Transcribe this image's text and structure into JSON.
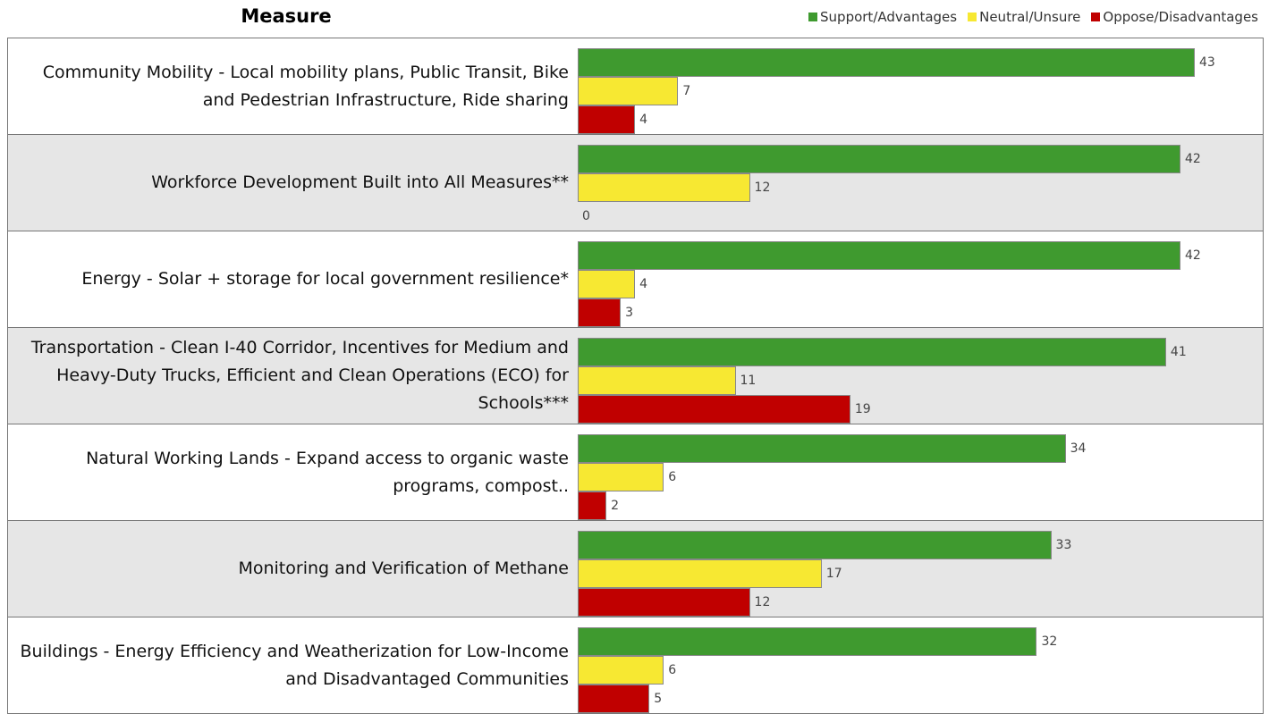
{
  "chart_data": {
    "type": "bar",
    "orientation": "horizontal",
    "header": "Measure",
    "categories": [
      "Community Mobility - Local mobility plans, Public Transit, Bike and Pedestrian Infrastructure, Ride sharing",
      "Workforce Development Built into All Measures**",
      "Energy - Solar + storage for local government resilience*",
      "Transportation - Clean I-40 Corridor, Incentives for Medium and Heavy-Duty Trucks, Efficient and Clean Operations (ECO) for Schools***",
      "Natural Working Lands - Expand access to organic waste programs, compost..",
      "Monitoring and Verification of Methane",
      "Buildings - Energy Efficiency and Weatherization for Low-Income and Disadvantaged Communities"
    ],
    "series": [
      {
        "name": "Support/Advantages",
        "color": "#3f9a2f",
        "values": [
          43,
          42,
          42,
          41,
          34,
          33,
          32
        ]
      },
      {
        "name": "Neutral/Unsure",
        "color": "#f7e832",
        "values": [
          7,
          12,
          4,
          11,
          6,
          17,
          6
        ]
      },
      {
        "name": "Oppose/Disadvantages",
        "color": "#c00000",
        "values": [
          4,
          0,
          3,
          19,
          2,
          12,
          5
        ]
      }
    ],
    "legend": "top-right"
  }
}
